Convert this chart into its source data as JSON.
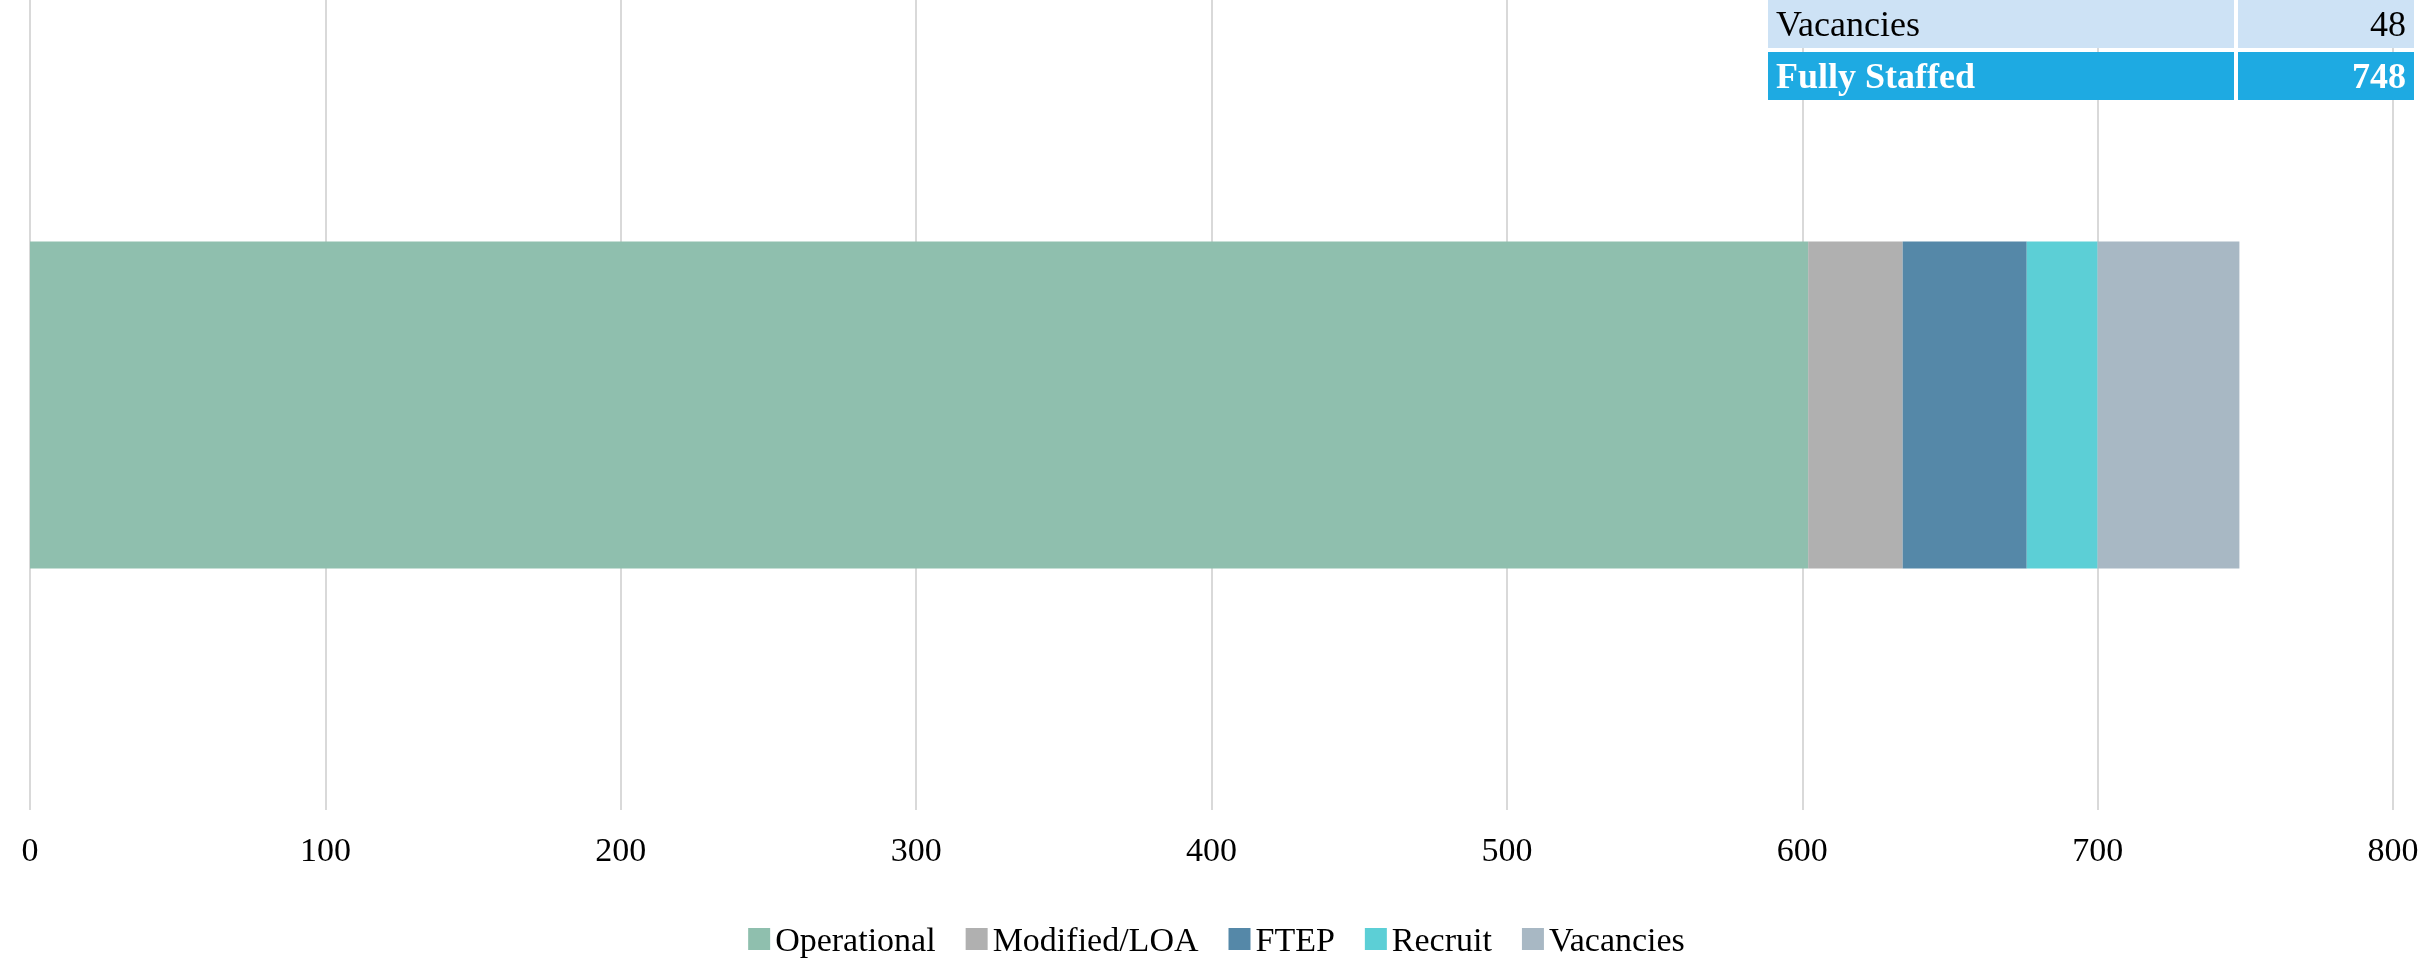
{
  "chart_data": {
    "type": "bar",
    "orientation": "horizontal",
    "stacked": true,
    "categories": [
      null
    ],
    "series": [
      {
        "name": "Operational",
        "color": "#8fbfae",
        "values": [
          602
        ]
      },
      {
        "name": "Modified/LOA",
        "color": "#b0b0b0",
        "values": [
          32
        ]
      },
      {
        "name": "FTEP",
        "color": "#5588a8",
        "values": [
          42
        ]
      },
      {
        "name": "Recruit",
        "color": "#5ccfd6",
        "values": [
          24
        ]
      },
      {
        "name": "Vacancies",
        "color": "#a8b8c4",
        "values": [
          48
        ]
      }
    ],
    "xlim": [
      0,
      800
    ],
    "xticks": [
      0,
      100,
      200,
      300,
      400,
      500,
      600,
      700,
      800
    ],
    "grid": "x",
    "legend": "bottom",
    "annotations": [
      "Vacancies",
      "48",
      "Fully Staffed",
      "748"
    ]
  }
}
